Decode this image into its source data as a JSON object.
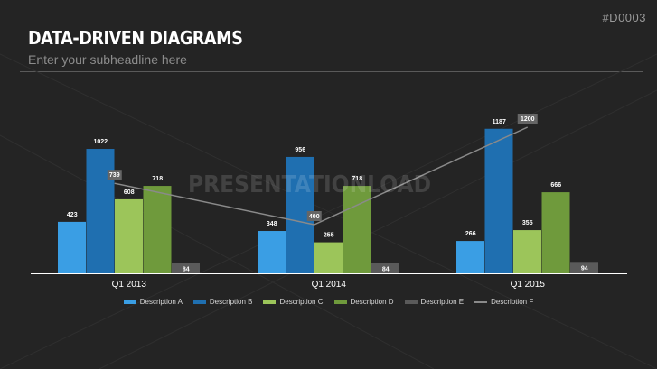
{
  "slide_id": "#D0003",
  "title": "DATA-DRIVEN DIAGRAMS",
  "subtitle": "Enter your subheadline here",
  "watermark": "PRESENTATIONLOAD",
  "chart_data": {
    "type": "bar",
    "categories": [
      "Q1 2013",
      "Q1 2014",
      "Q1 2015"
    ],
    "series": [
      {
        "name": "Description A",
        "kind": "bar",
        "color": "#3a9ee4",
        "values": [
          423,
          348,
          266
        ]
      },
      {
        "name": "Description B",
        "kind": "bar",
        "color": "#1f6fb0",
        "values": [
          1022,
          956,
          1187
        ]
      },
      {
        "name": "Description C",
        "kind": "bar",
        "color": "#9cc55a",
        "values": [
          608,
          255,
          355
        ]
      },
      {
        "name": "Description D",
        "kind": "bar",
        "color": "#6f9a3c",
        "values": [
          718,
          718,
          666
        ]
      },
      {
        "name": "Description E",
        "kind": "bar",
        "color": "#5a5a5a",
        "values": [
          84,
          84,
          94
        ]
      },
      {
        "name": "Description F",
        "kind": "line",
        "color": "#8a8a8a",
        "values": [
          739,
          400,
          1200
        ]
      }
    ],
    "ylim": [
      0,
      1300
    ],
    "grid": false,
    "legend_position": "bottom"
  }
}
